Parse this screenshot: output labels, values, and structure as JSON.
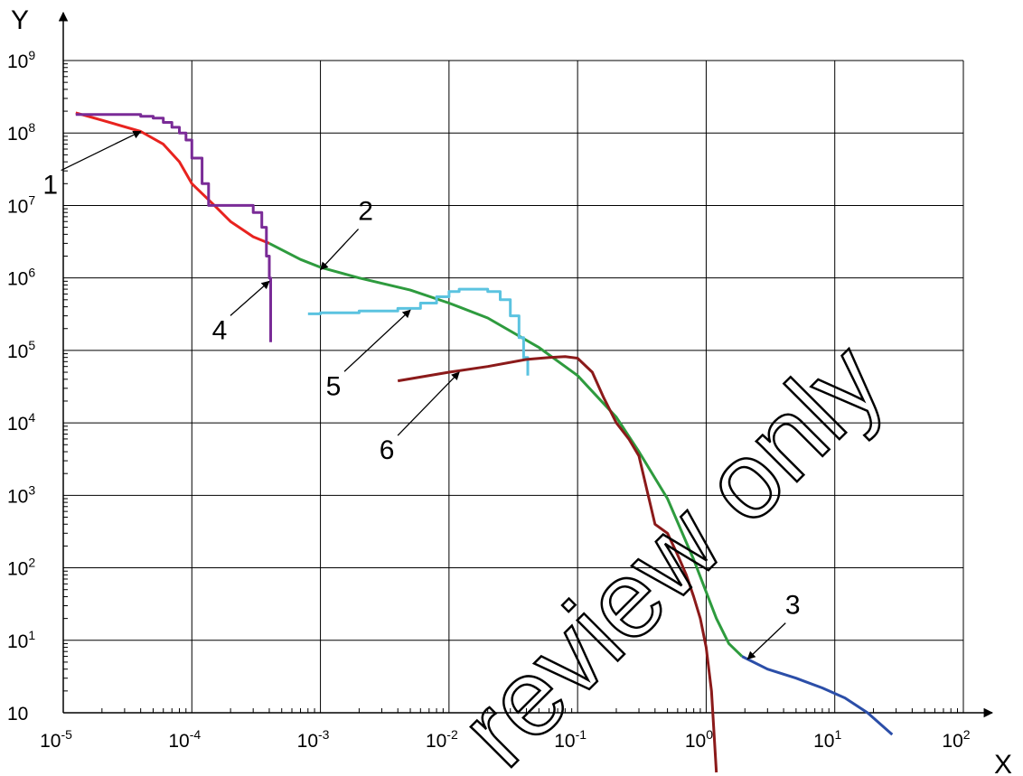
{
  "chart_data": {
    "type": "line",
    "xlabel": "X",
    "ylabel": "Y",
    "xscale": "log",
    "yscale": "log",
    "xlim": [
      1e-05,
      100
    ],
    "ylim": [
      1,
      1000000000
    ],
    "grid": true,
    "x_ticks": [
      {
        "base": "10",
        "exp": "-5"
      },
      {
        "base": "10",
        "exp": "-4"
      },
      {
        "base": "10",
        "exp": "-3"
      },
      {
        "base": "10",
        "exp": "-2"
      },
      {
        "base": "10",
        "exp": "-1"
      },
      {
        "base": "10",
        "exp": "0"
      },
      {
        "base": "10",
        "exp": "1"
      },
      {
        "base": "10",
        "exp": "2"
      }
    ],
    "y_ticks": [
      {
        "base": "10",
        "exp": ""
      },
      {
        "base": "10",
        "exp": "1"
      },
      {
        "base": "10",
        "exp": "2"
      },
      {
        "base": "10",
        "exp": "3"
      },
      {
        "base": "10",
        "exp": "4"
      },
      {
        "base": "10",
        "exp": "5"
      },
      {
        "base": "10",
        "exp": "6"
      },
      {
        "base": "10",
        "exp": "7"
      },
      {
        "base": "10",
        "exp": "8"
      },
      {
        "base": "10",
        "exp": "9"
      }
    ],
    "series": [
      {
        "label": "1",
        "color": "#e8231f",
        "step": false,
        "x": [
          1.25e-05,
          2e-05,
          4e-05,
          6e-05,
          8e-05,
          0.0001,
          0.00015,
          0.0002,
          0.0003,
          0.0004
        ],
        "y": [
          190000000,
          150000000,
          105000000,
          70000000,
          40000000,
          20000000,
          10000000,
          6000000,
          3700000,
          3000000
        ]
      },
      {
        "label": "2",
        "color": "#2e9b3e",
        "step": false,
        "x": [
          0.0004,
          0.0007,
          0.001,
          0.002,
          0.005,
          0.01,
          0.02,
          0.05,
          0.1,
          0.2,
          0.3,
          0.5,
          0.8,
          1.2,
          1.5,
          1.9
        ],
        "y": [
          3000000,
          1800000,
          1400000,
          1000000,
          680000,
          450000,
          280000,
          110000,
          45000,
          12000,
          4000,
          900,
          130,
          20,
          9,
          6
        ]
      },
      {
        "label": "3",
        "color": "#2b4ea8",
        "step": false,
        "x": [
          1.9,
          3,
          5,
          8,
          12,
          18,
          28
        ],
        "y": [
          6,
          4,
          3,
          2.2,
          1.6,
          1,
          0.5
        ]
      },
      {
        "label": "4",
        "color": "#7a2b97",
        "step": true,
        "x": [
          1.25e-05,
          4e-05,
          5e-05,
          6e-05,
          7e-05,
          8e-05,
          9e-05,
          0.0001,
          0.00012,
          0.000135,
          0.00015,
          0.0003,
          0.00035,
          0.00038,
          0.0004,
          0.00041
        ],
        "y": [
          180000000,
          170000000,
          160000000,
          140000000,
          120000000,
          100000000,
          80000000,
          45000000,
          20000000,
          10000000,
          10000000,
          8000000,
          5000000,
          2000000,
          1000000,
          130000
        ]
      },
      {
        "label": "5",
        "color": "#5bc3e0",
        "step": true,
        "x": [
          0.0008,
          0.001,
          0.002,
          0.004,
          0.006,
          0.008,
          0.01,
          0.012,
          0.015,
          0.02,
          0.025,
          0.03,
          0.035,
          0.038,
          0.041
        ],
        "y": [
          320000,
          330000,
          350000,
          380000,
          450000,
          550000,
          650000,
          700000,
          700000,
          650000,
          500000,
          300000,
          150000,
          80000,
          45000
        ]
      },
      {
        "label": "6",
        "color": "#8b1a1a",
        "step": false,
        "x": [
          0.004,
          0.01,
          0.02,
          0.04,
          0.06,
          0.08,
          0.1,
          0.13,
          0.16,
          0.2,
          0.25,
          0.3,
          0.4,
          0.5,
          0.6,
          0.7,
          0.8,
          0.9,
          1,
          1.1,
          1.2
        ],
        "y": [
          38000,
          50000,
          60000,
          75000,
          80000,
          82000,
          78000,
          50000,
          22000,
          10000,
          6000,
          3500,
          400,
          300,
          150,
          80,
          40,
          20,
          8,
          2,
          0.1
        ]
      }
    ],
    "annotations": [
      {
        "text": "1",
        "arrow_to": [
          4e-05,
          105000000
        ]
      },
      {
        "text": "2",
        "arrow_to": [
          0.001,
          1300000
        ]
      },
      {
        "text": "3",
        "arrow_to": [
          2.1,
          5.5
        ]
      },
      {
        "text": "4",
        "arrow_to": [
          0.0004,
          900000
        ]
      },
      {
        "text": "5",
        "arrow_to": [
          0.005,
          360000
        ]
      },
      {
        "text": "6",
        "arrow_to": [
          0.012,
          50000
        ]
      }
    ],
    "watermark": "review only"
  }
}
